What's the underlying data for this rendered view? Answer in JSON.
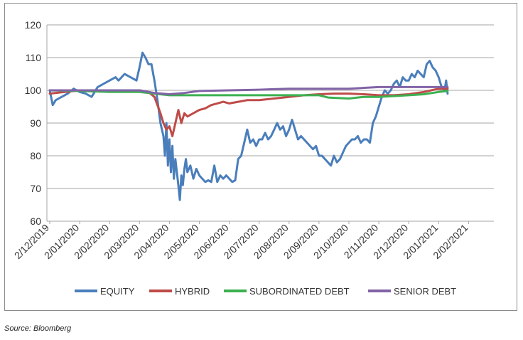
{
  "chart_data": {
    "type": "line",
    "title": "",
    "xlabel": "",
    "ylabel": "",
    "ylim": [
      60,
      120
    ],
    "yticks": [
      60,
      70,
      80,
      90,
      100,
      110,
      120
    ],
    "xtick_labels": [
      "2/12/2019",
      "2/01/2020",
      "2/02/2020",
      "2/03/2020",
      "2/04/2020",
      "2/05/2020",
      "2/06/2020",
      "2/07/2020",
      "2/08/2020",
      "2/09/2020",
      "2/10/2020",
      "2/11/2020",
      "2/12/2020",
      "2/01/2021",
      "2/02/2021"
    ],
    "grid": "horizontal",
    "legend": "bottom",
    "x_index_note": "monthly index, 0 = 2/12/2019",
    "series": [
      {
        "name": "EQUITY",
        "color": "#4a7ebb",
        "points": [
          [
            0,
            100
          ],
          [
            0.1,
            95.5
          ],
          [
            0.2,
            97
          ],
          [
            0.4,
            98
          ],
          [
            0.6,
            99
          ],
          [
            0.8,
            100.5
          ],
          [
            1.0,
            99.5
          ],
          [
            1.2,
            99
          ],
          [
            1.4,
            98
          ],
          [
            1.5,
            99.5
          ],
          [
            1.6,
            101
          ],
          [
            1.8,
            102
          ],
          [
            2.0,
            103
          ],
          [
            2.2,
            104
          ],
          [
            2.3,
            103
          ],
          [
            2.5,
            105
          ],
          [
            2.7,
            104
          ],
          [
            2.9,
            103
          ],
          [
            3.0,
            107
          ],
          [
            3.1,
            111.5
          ],
          [
            3.2,
            110
          ],
          [
            3.3,
            108
          ],
          [
            3.4,
            108
          ],
          [
            3.5,
            103
          ],
          [
            3.6,
            97
          ],
          [
            3.7,
            90
          ],
          [
            3.8,
            86
          ],
          [
            3.85,
            80
          ],
          [
            3.9,
            90
          ],
          [
            3.95,
            77
          ],
          [
            4.0,
            85
          ],
          [
            4.05,
            75
          ],
          [
            4.1,
            83
          ],
          [
            4.15,
            73
          ],
          [
            4.2,
            79
          ],
          [
            4.25,
            75
          ],
          [
            4.3,
            71
          ],
          [
            4.35,
            66.5
          ],
          [
            4.4,
            74
          ],
          [
            4.45,
            71
          ],
          [
            4.5,
            76
          ],
          [
            4.55,
            79
          ],
          [
            4.6,
            75
          ],
          [
            4.7,
            77
          ],
          [
            4.8,
            73
          ],
          [
            4.9,
            76
          ],
          [
            5.0,
            74
          ],
          [
            5.1,
            73
          ],
          [
            5.2,
            72
          ],
          [
            5.3,
            72.5
          ],
          [
            5.4,
            72
          ],
          [
            5.5,
            77
          ],
          [
            5.6,
            72
          ],
          [
            5.7,
            74
          ],
          [
            5.8,
            73
          ],
          [
            5.9,
            74
          ],
          [
            6.0,
            73
          ],
          [
            6.1,
            72
          ],
          [
            6.2,
            72.5
          ],
          [
            6.3,
            79
          ],
          [
            6.4,
            80
          ],
          [
            6.5,
            84
          ],
          [
            6.6,
            88
          ],
          [
            6.7,
            84
          ],
          [
            6.8,
            85
          ],
          [
            6.9,
            83
          ],
          [
            7.0,
            85
          ],
          [
            7.1,
            85
          ],
          [
            7.2,
            87
          ],
          [
            7.3,
            85
          ],
          [
            7.4,
            86
          ],
          [
            7.5,
            88
          ],
          [
            7.6,
            90
          ],
          [
            7.7,
            88
          ],
          [
            7.8,
            89
          ],
          [
            7.9,
            86
          ],
          [
            8.0,
            88
          ],
          [
            8.1,
            91
          ],
          [
            8.2,
            88
          ],
          [
            8.3,
            85
          ],
          [
            8.4,
            86
          ],
          [
            8.5,
            85
          ],
          [
            8.6,
            84
          ],
          [
            8.7,
            83
          ],
          [
            8.8,
            82
          ],
          [
            8.9,
            83
          ],
          [
            9.0,
            80
          ],
          [
            9.1,
            80
          ],
          [
            9.2,
            79
          ],
          [
            9.3,
            78
          ],
          [
            9.4,
            77
          ],
          [
            9.5,
            80
          ],
          [
            9.6,
            78
          ],
          [
            9.7,
            79
          ],
          [
            9.8,
            81
          ],
          [
            9.9,
            83
          ],
          [
            10.0,
            84
          ],
          [
            10.1,
            85
          ],
          [
            10.2,
            85
          ],
          [
            10.3,
            86
          ],
          [
            10.4,
            84
          ],
          [
            10.5,
            85
          ],
          [
            10.6,
            85
          ],
          [
            10.7,
            84
          ],
          [
            10.8,
            90
          ],
          [
            10.9,
            92
          ],
          [
            11.0,
            95
          ],
          [
            11.1,
            98
          ],
          [
            11.2,
            100
          ],
          [
            11.3,
            99
          ],
          [
            11.4,
            100
          ],
          [
            11.5,
            102
          ],
          [
            11.6,
            103
          ],
          [
            11.7,
            101
          ],
          [
            11.8,
            104
          ],
          [
            11.9,
            103
          ],
          [
            12.0,
            103
          ],
          [
            12.1,
            105
          ],
          [
            12.2,
            104
          ],
          [
            12.3,
            106
          ],
          [
            12.4,
            105
          ],
          [
            12.5,
            104
          ],
          [
            12.6,
            108
          ],
          [
            12.7,
            109
          ],
          [
            12.8,
            107
          ],
          [
            12.9,
            106
          ],
          [
            13.0,
            104
          ],
          [
            13.1,
            101
          ],
          [
            13.2,
            100
          ],
          [
            13.25,
            103
          ],
          [
            13.3,
            99
          ]
        ]
      },
      {
        "name": "HYBRID",
        "color": "#be4b48",
        "points": [
          [
            0,
            99
          ],
          [
            0.5,
            99.5
          ],
          [
            1.0,
            100
          ],
          [
            1.5,
            100
          ],
          [
            2.0,
            100
          ],
          [
            2.5,
            100
          ],
          [
            3.0,
            100
          ],
          [
            3.3,
            99.5
          ],
          [
            3.5,
            98
          ],
          [
            3.7,
            93
          ],
          [
            3.8,
            90
          ],
          [
            3.9,
            88
          ],
          [
            4.0,
            89
          ],
          [
            4.1,
            86
          ],
          [
            4.2,
            90
          ],
          [
            4.3,
            94
          ],
          [
            4.4,
            90
          ],
          [
            4.5,
            93
          ],
          [
            4.6,
            92
          ],
          [
            4.8,
            93
          ],
          [
            5.0,
            94
          ],
          [
            5.2,
            94.5
          ],
          [
            5.4,
            95.5
          ],
          [
            5.6,
            96
          ],
          [
            5.8,
            96.5
          ],
          [
            6.0,
            96
          ],
          [
            6.3,
            96.5
          ],
          [
            6.6,
            97
          ],
          [
            7.0,
            97
          ],
          [
            7.5,
            97.5
          ],
          [
            8.0,
            98
          ],
          [
            8.5,
            98.5
          ],
          [
            9.0,
            98.8
          ],
          [
            9.5,
            99
          ],
          [
            10.0,
            99
          ],
          [
            10.5,
            98.8
          ],
          [
            11.0,
            98.5
          ],
          [
            11.5,
            98.5
          ],
          [
            12.0,
            98.8
          ],
          [
            12.5,
            99.5
          ],
          [
            13.0,
            100.5
          ],
          [
            13.3,
            100.5
          ]
        ]
      },
      {
        "name": "SUBORDINATED DEBT",
        "color": "#3cb050",
        "points": [
          [
            0,
            100
          ],
          [
            1.0,
            99.8
          ],
          [
            2.0,
            99.5
          ],
          [
            3.0,
            99.5
          ],
          [
            3.5,
            99
          ],
          [
            4.0,
            98.5
          ],
          [
            5.0,
            98.5
          ],
          [
            6.0,
            98.5
          ],
          [
            7.0,
            98.5
          ],
          [
            8.0,
            98.5
          ],
          [
            9.0,
            98.5
          ],
          [
            9.3,
            97.8
          ],
          [
            10.0,
            97.5
          ],
          [
            10.5,
            98
          ],
          [
            11.0,
            98
          ],
          [
            12.0,
            98.5
          ],
          [
            12.5,
            98.8
          ],
          [
            13.0,
            99.5
          ],
          [
            13.3,
            99.8
          ]
        ]
      },
      {
        "name": "SENIOR DEBT",
        "color": "#8163a6",
        "points": [
          [
            0,
            100
          ],
          [
            1.0,
            100
          ],
          [
            2.0,
            100
          ],
          [
            3.0,
            100
          ],
          [
            3.5,
            99.2
          ],
          [
            4.0,
            98.8
          ],
          [
            4.5,
            99.2
          ],
          [
            5.0,
            99.8
          ],
          [
            6.0,
            100
          ],
          [
            7.0,
            100.2
          ],
          [
            8.0,
            100.5
          ],
          [
            9.0,
            100.5
          ],
          [
            10.0,
            100.5
          ],
          [
            11.0,
            101
          ],
          [
            12.0,
            101
          ],
          [
            13.0,
            101
          ],
          [
            13.3,
            101
          ]
        ]
      }
    ]
  },
  "source_note": "Source: Bloomberg"
}
